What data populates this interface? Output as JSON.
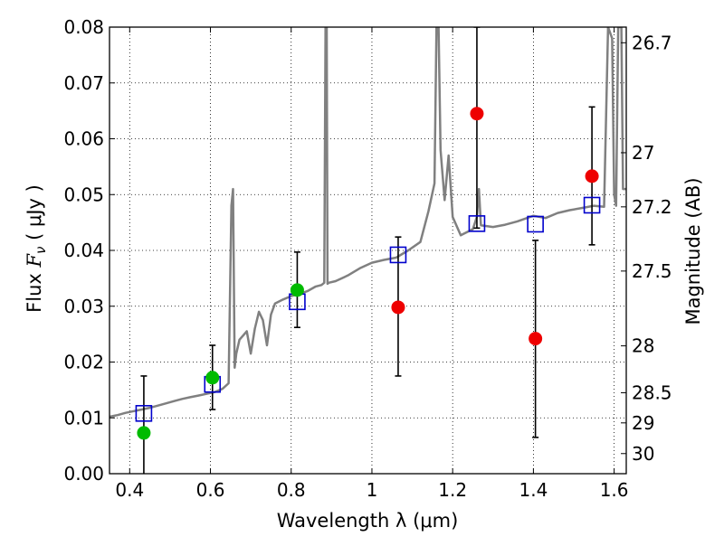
{
  "chart_data": {
    "type": "scatter",
    "xlabel": "Wavelength  λ (μm)",
    "ylabel_prefix": "Flux  ",
    "ylabel_symbol": "F",
    "ylabel_sub": "ν",
    "ylabel_units": "  ( μJy )",
    "y2label": "Magnitude (AB)",
    "xlim": [
      0.35,
      1.63
    ],
    "ylim": [
      0.0,
      0.08
    ],
    "grid": true,
    "x_ticks": [
      0.4,
      0.6,
      0.8,
      1.0,
      1.2,
      1.4,
      1.6
    ],
    "x_tick_labels": [
      "0.4",
      "0.6",
      "0.8",
      "1",
      "1.2",
      "1.4",
      "1.6"
    ],
    "y_ticks": [
      0.0,
      0.01,
      0.02,
      0.03,
      0.04,
      0.05,
      0.06,
      0.07,
      0.08
    ],
    "y_tick_labels": [
      "0.00",
      "0.01",
      "0.02",
      "0.03",
      "0.04",
      "0.05",
      "0.06",
      "0.07",
      "0.08"
    ],
    "y2_ticks": [
      {
        "label": "26.7",
        "flux": 0.0772
      },
      {
        "label": "27",
        "flux": 0.0575
      },
      {
        "label": "27.2",
        "flux": 0.0478
      },
      {
        "label": "27.5",
        "flux": 0.0363
      },
      {
        "label": "28",
        "flux": 0.0229
      },
      {
        "label": "28.5",
        "flux": 0.0145
      },
      {
        "label": "29",
        "flux": 0.0091
      },
      {
        "label": "30",
        "flux": 0.0036
      }
    ],
    "colors": {
      "model": "#808080",
      "model_photometry": "#0000cc",
      "green_points": "#00bb00",
      "red_points": "#ee0000",
      "errorbars": "#000000",
      "grid": "#000000"
    },
    "series": [
      {
        "name": "SED model spectrum",
        "style": "line",
        "x": [
          0.35,
          0.37,
          0.39,
          0.41,
          0.43,
          0.45,
          0.47,
          0.49,
          0.51,
          0.53,
          0.55,
          0.57,
          0.59,
          0.61,
          0.63,
          0.645,
          0.652,
          0.656,
          0.66,
          0.664,
          0.672,
          0.69,
          0.7,
          0.71,
          0.72,
          0.73,
          0.74,
          0.75,
          0.76,
          0.78,
          0.8,
          0.82,
          0.84,
          0.86,
          0.875,
          0.882,
          0.885,
          0.888,
          0.89,
          0.893,
          0.91,
          0.94,
          0.97,
          1.0,
          1.03,
          1.06,
          1.09,
          1.12,
          1.14,
          1.155,
          1.16,
          1.165,
          1.17,
          1.18,
          1.19,
          1.2,
          1.22,
          1.25,
          1.26,
          1.265,
          1.27,
          1.3,
          1.33,
          1.36,
          1.4,
          1.43,
          1.46,
          1.49,
          1.52,
          1.55,
          1.575,
          1.585,
          1.595,
          1.6,
          1.605,
          1.61,
          1.613,
          1.618,
          1.622,
          1.63
        ],
        "y": [
          0.0102,
          0.0105,
          0.0109,
          0.0112,
          0.0115,
          0.0118,
          0.0122,
          0.0126,
          0.013,
          0.0134,
          0.0137,
          0.014,
          0.0143,
          0.0146,
          0.0152,
          0.0162,
          0.048,
          0.051,
          0.019,
          0.0215,
          0.024,
          0.0255,
          0.0215,
          0.026,
          0.029,
          0.0275,
          0.023,
          0.0285,
          0.0305,
          0.0312,
          0.0318,
          0.0322,
          0.0327,
          0.0335,
          0.0338,
          0.0342,
          0.08,
          0.08,
          0.034,
          0.0342,
          0.0345,
          0.0355,
          0.0368,
          0.0378,
          0.0383,
          0.0387,
          0.04,
          0.0415,
          0.047,
          0.052,
          0.08,
          0.08,
          0.058,
          0.049,
          0.057,
          0.046,
          0.0427,
          0.0438,
          0.046,
          0.051,
          0.0445,
          0.0442,
          0.0446,
          0.0452,
          0.0462,
          0.0458,
          0.0467,
          0.0472,
          0.0476,
          0.048,
          0.0478,
          0.08,
          0.078,
          0.05,
          0.048,
          0.08,
          0.08,
          0.08,
          0.051,
          0.051
        ]
      },
      {
        "name": "Model photometry",
        "style": "open-square",
        "x": [
          0.435,
          0.605,
          0.815,
          1.065,
          1.26,
          1.405,
          1.545
        ],
        "y": [
          0.0108,
          0.016,
          0.0308,
          0.0392,
          0.0448,
          0.0447,
          0.0481
        ]
      },
      {
        "name": "Observed (green)",
        "style": "filled-circle",
        "x": [
          0.435,
          0.605,
          0.815
        ],
        "y": [
          0.0073,
          0.0172,
          0.0329
        ],
        "err_low": [
          0.0073,
          0.0057,
          0.0067
        ],
        "err_high": [
          0.0102,
          0.0058,
          0.0068
        ]
      },
      {
        "name": "Observed (red)",
        "style": "filled-circle",
        "x": [
          1.065,
          1.26,
          1.405,
          1.545
        ],
        "y": [
          0.0298,
          0.0645,
          0.0242,
          0.0533
        ],
        "err_low": [
          0.0123,
          0.0205,
          0.0177,
          0.0123
        ],
        "err_high": [
          0.0126,
          0.0155,
          0.0176,
          0.0124
        ]
      }
    ]
  }
}
